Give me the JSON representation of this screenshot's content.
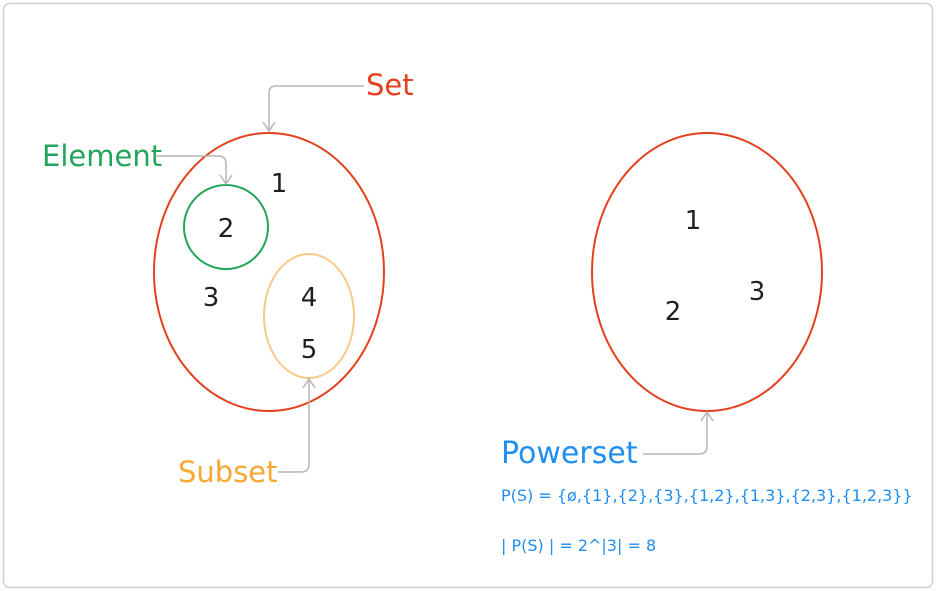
{
  "colors": {
    "border": "#cfcfcf",
    "set": "#e5401e",
    "element": "#22a55a",
    "subset": "#f5a832",
    "powerset": "#1f8ef1",
    "arrow": "#b5b5b5",
    "text": "#1f1f1f"
  },
  "left_diagram": {
    "set_label": "Set",
    "element_label": "Element",
    "subset_label": "Subset",
    "numbers": {
      "n1": "1",
      "n2": "2",
      "n3": "3",
      "n4": "4",
      "n5": "5"
    }
  },
  "right_diagram": {
    "numbers": {
      "n1": "1",
      "n2": "2",
      "n3": "3"
    },
    "powerset_label": "Powerset",
    "formula_set": "P(S) = {ø,{1},{2},{3},{1,2},{1,3},{2,3},{1,2,3}}",
    "formula_card": "| P(S) | = 2^|3| = 8"
  }
}
